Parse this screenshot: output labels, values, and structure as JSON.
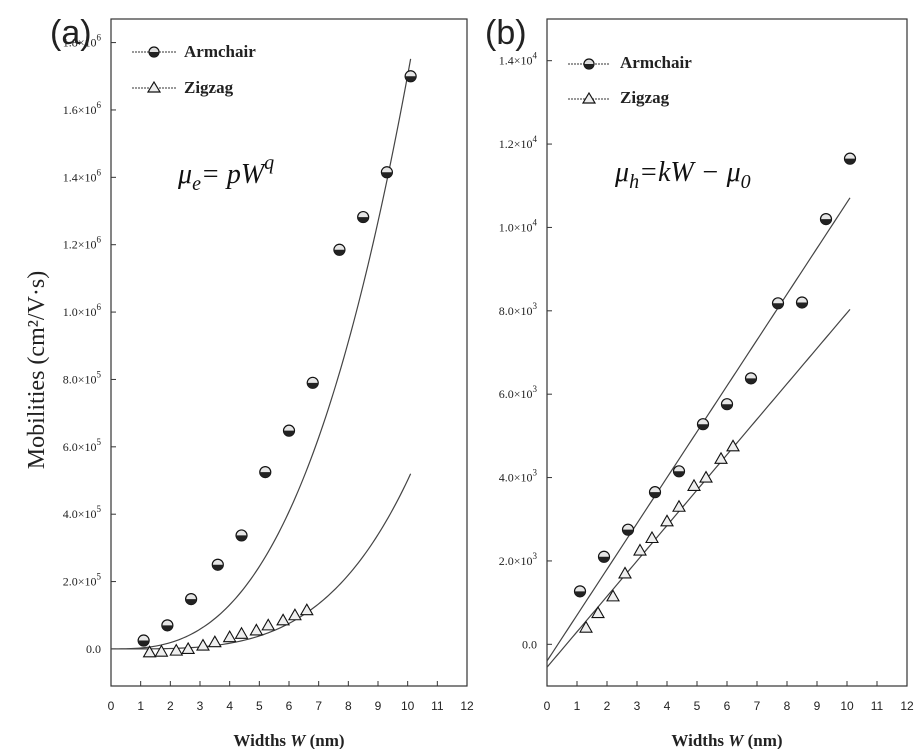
{
  "figure": {
    "ylabel": "Mobilities (cm²/V·s)"
  },
  "chart_data": [
    {
      "type": "scatter",
      "panel_label": "(a)",
      "xlabel_prefix": "Widths ",
      "xlabel_var": "W",
      "xlabel_suffix": " (nm)",
      "xlim": [
        0,
        12
      ],
      "ylim": [
        -110000,
        1870000
      ],
      "x_ticks": [
        "0",
        "1",
        "2",
        "3",
        "4",
        "5",
        "6",
        "7",
        "8",
        "9",
        "10",
        "11",
        "12"
      ],
      "y_ticks": [
        {
          "value": 0,
          "label": "0.0"
        },
        {
          "value": 200000,
          "label": "2.0×10",
          "exp": "5"
        },
        {
          "value": 400000,
          "label": "4.0×10",
          "exp": "5"
        },
        {
          "value": 600000,
          "label": "6.0×10",
          "exp": "5"
        },
        {
          "value": 800000,
          "label": "8.0×10",
          "exp": "5"
        },
        {
          "value": 1000000,
          "label": "1.0×10",
          "exp": "6"
        },
        {
          "value": 1200000,
          "label": "1.2×10",
          "exp": "6"
        },
        {
          "value": 1400000,
          "label": "1.4×10",
          "exp": "6"
        },
        {
          "value": 1600000,
          "label": "1.6×10",
          "exp": "6"
        },
        {
          "value": 1800000,
          "label": "1.8×10",
          "exp": "6"
        }
      ],
      "formula": {
        "mu": "μ",
        "sub": "e",
        "rhs": "= pW",
        "sup": "q"
      },
      "series": [
        {
          "name": "Armchair",
          "marker": "circle",
          "points": [
            [
              1.1,
              25000
            ],
            [
              1.9,
              70000
            ],
            [
              2.7,
              148000
            ],
            [
              3.6,
              250000
            ],
            [
              4.4,
              337000
            ],
            [
              5.2,
              525000
            ],
            [
              6.0,
              648000
            ],
            [
              6.8,
              790000
            ],
            [
              7.7,
              1185000
            ],
            [
              8.5,
              1282000
            ],
            [
              9.3,
              1415000
            ],
            [
              10.1,
              1700000
            ]
          ],
          "fit": {
            "model": "power",
            "p": 2700,
            "q": 2.8,
            "x_range": [
              0,
              10.1
            ]
          }
        },
        {
          "name": "Zigzag",
          "marker": "triangle",
          "points": [
            [
              1.3,
              -10000
            ],
            [
              1.7,
              -8000
            ],
            [
              2.2,
              -5000
            ],
            [
              2.6,
              0
            ],
            [
              3.1,
              10000
            ],
            [
              3.5,
              20000
            ],
            [
              4.0,
              35000
            ],
            [
              4.4,
              45000
            ],
            [
              4.9,
              55000
            ],
            [
              5.3,
              70000
            ],
            [
              5.8,
              85000
            ],
            [
              6.2,
              100000
            ],
            [
              6.6,
              115000
            ]
          ],
          "fit": {
            "model": "power",
            "p": 100,
            "q": 3.7,
            "x_range": [
              0,
              10.1
            ]
          }
        }
      ]
    },
    {
      "type": "scatter",
      "panel_label": "(b)",
      "xlabel_prefix": "Widths ",
      "xlabel_var": "W",
      "xlabel_suffix": " (nm)",
      "xlim": [
        0,
        12
      ],
      "ylim": [
        -1000,
        15000
      ],
      "x_ticks": [
        "0",
        "1",
        "2",
        "3",
        "4",
        "5",
        "6",
        "7",
        "8",
        "9",
        "10",
        "11",
        "12"
      ],
      "y_ticks": [
        {
          "value": 0,
          "label": "0.0"
        },
        {
          "value": 2000,
          "label": "2.0×10",
          "exp": "3"
        },
        {
          "value": 4000,
          "label": "4.0×10",
          "exp": "3"
        },
        {
          "value": 6000,
          "label": "6.0×10",
          "exp": "3"
        },
        {
          "value": 8000,
          "label": "8.0×10",
          "exp": "3"
        },
        {
          "value": 10000,
          "label": "1.0×10",
          "exp": "4"
        },
        {
          "value": 12000,
          "label": "1.2×10",
          "exp": "4"
        },
        {
          "value": 14000,
          "label": "1.4×10",
          "exp": "4"
        }
      ],
      "formula": {
        "mu": "μ",
        "sub": "h",
        "rhs": "=kW − μ",
        "sub2": "0"
      },
      "series": [
        {
          "name": "Armchair",
          "marker": "circle",
          "points": [
            [
              1.1,
              1270
            ],
            [
              1.9,
              2100
            ],
            [
              2.7,
              2750
            ],
            [
              3.6,
              3650
            ],
            [
              4.4,
              4150
            ],
            [
              5.2,
              5280
            ],
            [
              6.0,
              5760
            ],
            [
              6.8,
              6380
            ],
            [
              7.7,
              8180
            ],
            [
              8.5,
              8200
            ],
            [
              9.3,
              10200
            ],
            [
              10.1,
              11650
            ]
          ],
          "fit": {
            "model": "linear",
            "k": 1100,
            "mu0": 400,
            "x_range": [
              0,
              10.1
            ]
          }
        },
        {
          "name": "Zigzag",
          "marker": "triangle",
          "points": [
            [
              1.3,
              400
            ],
            [
              1.7,
              750
            ],
            [
              2.2,
              1150
            ],
            [
              2.6,
              1700
            ],
            [
              3.1,
              2250
            ],
            [
              3.5,
              2550
            ],
            [
              4.0,
              2950
            ],
            [
              4.4,
              3300
            ],
            [
              4.9,
              3800
            ],
            [
              5.3,
              4000
            ],
            [
              5.8,
              4450
            ],
            [
              6.2,
              4750
            ]
          ],
          "fit": {
            "model": "linear",
            "k": 850,
            "mu0": 550,
            "x_range": [
              0,
              10.1
            ]
          }
        }
      ]
    }
  ]
}
